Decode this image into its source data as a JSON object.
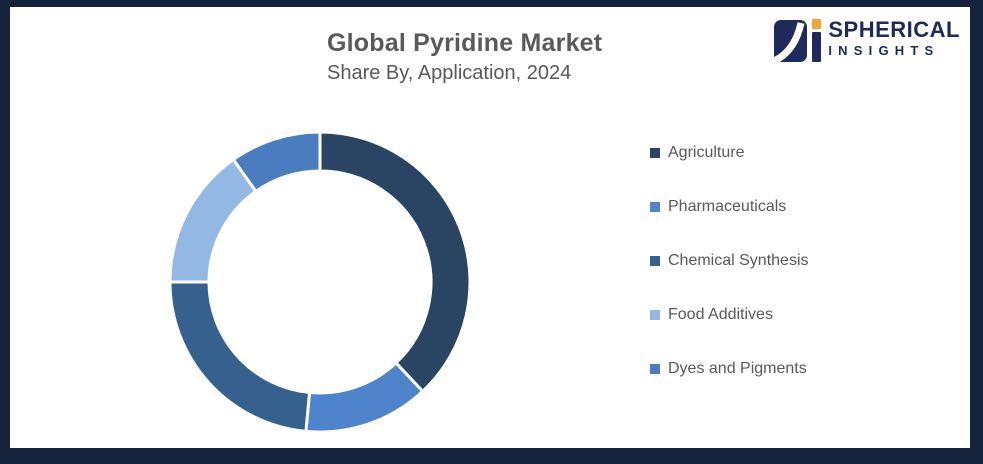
{
  "frame": {
    "border_color": "#15233D",
    "background": "#ffffff"
  },
  "header": {
    "title": "Global Pyridine Market",
    "subtitle": "Share By, Application, 2024"
  },
  "logo": {
    "line1": "SPHERICAL",
    "line2": "INSIGHTS",
    "navy": "#1F2A5B",
    "orange": "#F2A43B"
  },
  "chart_data": {
    "type": "pie",
    "subtype": "donut",
    "title": "Global Pyridine Market",
    "subtitle": "Share By, Application, 2024",
    "categories": [
      "Agriculture",
      "Pharmaceuticals",
      "Chemical Synthesis",
      "Food Additives",
      "Dyes and Pigments"
    ],
    "values": [
      38.0,
      13.5,
      23.5,
      15.2,
      9.8
    ],
    "unit": "percent_share_estimated_from_arc_angles",
    "colors": [
      "#2A4463",
      "#4E84CB",
      "#36618E",
      "#94B8E4",
      "#4A7CC0"
    ],
    "data_labels_shown": false,
    "legend_position": "right",
    "start_angle_deg": 0,
    "direction": "clockwise",
    "inner_radius_ratio": 0.74,
    "slice_gap_color": "#ffffff"
  }
}
